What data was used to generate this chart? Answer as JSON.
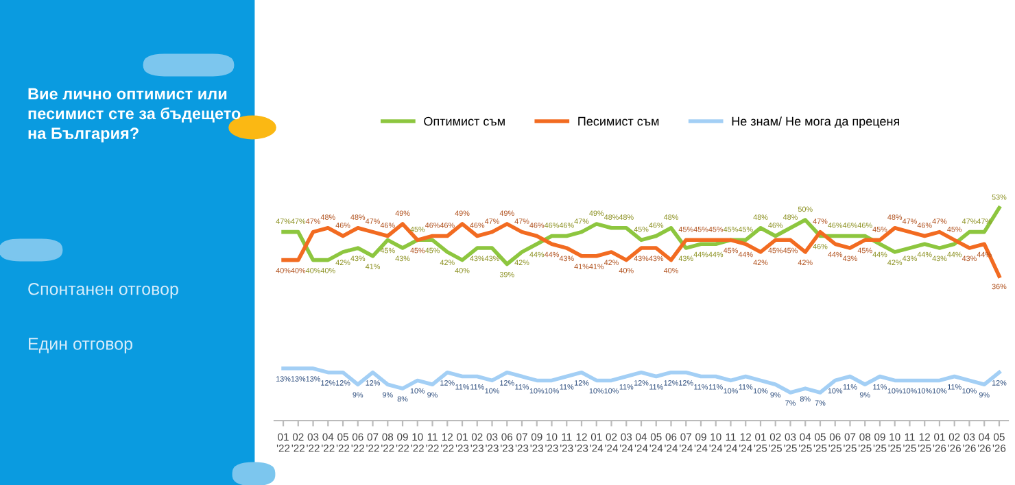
{
  "chart_data": {
    "type": "line",
    "title": "Вие лично оптимист или\nпесимист сте за бъдещето\nна България?",
    "annotations": [
      "Спонтанен отговор",
      "Един отговор"
    ],
    "categories": [
      "01\n'22",
      "02\n'22",
      "03\n'22",
      "04\n'22",
      "05\n'22",
      "06\n'22",
      "07\n'22",
      "08\n'22",
      "09\n'22",
      "10\n'22",
      "11\n'22",
      "12\n'22",
      "01\n'23",
      "02\n'23",
      "03\n'23",
      "06\n'23",
      "07\n'23",
      "09\n'23",
      "10\n'23",
      "11\n'23",
      "12\n'23",
      "01\n'24",
      "02\n'24",
      "03\n'24",
      "04\n'24",
      "05\n'24",
      "06\n'24",
      "07\n'24",
      "09\n'24",
      "10\n'24",
      "11\n'24",
      "12\n'24",
      "01\n'25",
      "02\n'25",
      "03\n'25",
      "04\n'25",
      "05\n'25",
      "06\n'25",
      "07\n'25",
      "08\n'25",
      "09\n'25",
      "10\n'25",
      "11\n'25",
      "12\n'25",
      "01\n'26",
      "02\n'26",
      "03\n'26",
      "04\n'26",
      "05\n'26"
    ],
    "series": [
      {
        "name": "Оптимист съм",
        "color": "#8dc63f",
        "values": [
          47,
          47,
          40,
          40,
          42,
          43,
          41,
          45,
          43,
          45,
          45,
          42,
          40,
          43,
          43,
          39,
          42,
          44,
          46,
          46,
          47,
          49,
          48,
          48,
          45,
          46,
          48,
          43,
          44,
          44,
          45,
          45,
          48,
          46,
          48,
          50,
          46,
          46,
          46,
          46,
          44,
          42,
          43,
          44,
          43,
          44,
          47,
          47,
          53
        ],
        "value_labels": [
          "47%",
          "47%",
          "40%",
          "40%",
          "42%",
          "43%",
          "41%",
          "45%",
          "43%",
          "45%",
          "45%",
          "42%",
          "40%",
          "43%",
          "43%",
          "39%",
          "42%",
          "44%",
          "46%",
          "46%",
          "47%",
          "49%",
          "48%",
          "48%",
          "45%",
          "46%",
          "48%",
          "43%",
          "44%",
          "44%",
          "45%",
          "45%",
          "48%",
          "46%",
          "48%",
          "50%",
          "46%",
          "46%",
          "46%",
          "46%",
          "44%",
          "42%",
          "43%",
          "44%",
          "43%",
          "44%",
          "47%",
          "47%",
          "53%"
        ]
      },
      {
        "name": "Песимист съм",
        "color": "#f26b21",
        "values": [
          40,
          40,
          47,
          48,
          46,
          48,
          47,
          46,
          49,
          45,
          46,
          46,
          49,
          46,
          47,
          49,
          47,
          46,
          44,
          43,
          41,
          41,
          42,
          40,
          43,
          43,
          40,
          45,
          45,
          45,
          45,
          44,
          42,
          45,
          45,
          42,
          47,
          44,
          43,
          45,
          45,
          48,
          47,
          46,
          47,
          45,
          43,
          44,
          36
        ],
        "value_labels": [
          "40%",
          "40%",
          "47%",
          "48%",
          "46%",
          "48%",
          "47%",
          "46%",
          "49%",
          "45%",
          "46%",
          "46%",
          "49%",
          "46%",
          "47%",
          "49%",
          "47%",
          "46%",
          "44%",
          "43%",
          "41%",
          "41%",
          "42%",
          "40%",
          "43%",
          "43%",
          "40%",
          "45%",
          "45%",
          "45%",
          "45%",
          "44%",
          "42%",
          "45%",
          "45%",
          "42%",
          "47%",
          "44%",
          "43%",
          "45%",
          "45%",
          "48%",
          "47%",
          "46%",
          "47%",
          "45%",
          "43%",
          "44%",
          "36%"
        ]
      },
      {
        "name": "Не знам/ Не мога да преценя",
        "color": "#a3cff5",
        "values": [
          13,
          13,
          13,
          12,
          12,
          9,
          12,
          9,
          8,
          10,
          9,
          12,
          11,
          11,
          10,
          12,
          11,
          10,
          10,
          11,
          12,
          10,
          10,
          11,
          12,
          11,
          12,
          12,
          11,
          11,
          10,
          11,
          10,
          9,
          7,
          8,
          7,
          10,
          11,
          9,
          11,
          10,
          10,
          10,
          10,
          11,
          10,
          9,
          12
        ],
        "value_labels": [
          "13%",
          "13%",
          "13%",
          "12%",
          "12%",
          "9%",
          "12%",
          "9%",
          "8%",
          "10%",
          "9%",
          "12%",
          "11%",
          "11%",
          "10%",
          "12%",
          "11%",
          "10%",
          "10%",
          "11%",
          "12%",
          "10%",
          "10%",
          "11%",
          "12%",
          "11%",
          "12%",
          "12%",
          "11%",
          "11%",
          "10%",
          "11%",
          "10%",
          "9%",
          "7%",
          "8%",
          "7%",
          "10%",
          "11%",
          "9%",
          "11%",
          "10%",
          "10%",
          "10%",
          "10%",
          "11%",
          "10%",
          "9%",
          "12%"
        ]
      }
    ],
    "legend": "top",
    "marker": "none",
    "line_style": "solid",
    "tick_labels": "x"
  }
}
